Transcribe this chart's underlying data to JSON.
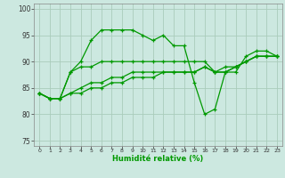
{
  "xlabel": "Humidité relative (%)",
  "bg_color": "#cce8e0",
  "grid_color": "#aaccbb",
  "line_color": "#009900",
  "ylim": [
    74,
    101
  ],
  "xlim": [
    -0.5,
    23.5
  ],
  "yticks": [
    75,
    80,
    85,
    90,
    95,
    100
  ],
  "xticks": [
    0,
    1,
    2,
    3,
    4,
    5,
    6,
    7,
    8,
    9,
    10,
    11,
    12,
    13,
    14,
    15,
    16,
    17,
    18,
    19,
    20,
    21,
    22,
    23
  ],
  "series": [
    [
      84,
      83,
      83,
      88,
      90,
      94,
      96,
      96,
      96,
      96,
      95,
      94,
      95,
      93,
      93,
      86,
      80,
      81,
      88,
      88,
      91,
      92,
      92,
      91
    ],
    [
      84,
      83,
      83,
      88,
      89,
      89,
      90,
      90,
      90,
      90,
      90,
      90,
      90,
      90,
      90,
      90,
      90,
      88,
      88,
      89,
      90,
      91,
      91,
      91
    ],
    [
      84,
      83,
      83,
      84,
      84,
      85,
      85,
      86,
      86,
      87,
      87,
      87,
      88,
      88,
      88,
      88,
      89,
      88,
      88,
      89,
      90,
      91,
      91,
      91
    ],
    [
      84,
      83,
      83,
      84,
      85,
      86,
      86,
      87,
      87,
      88,
      88,
      88,
      88,
      88,
      88,
      88,
      89,
      88,
      89,
      89,
      90,
      91,
      91,
      91
    ]
  ]
}
